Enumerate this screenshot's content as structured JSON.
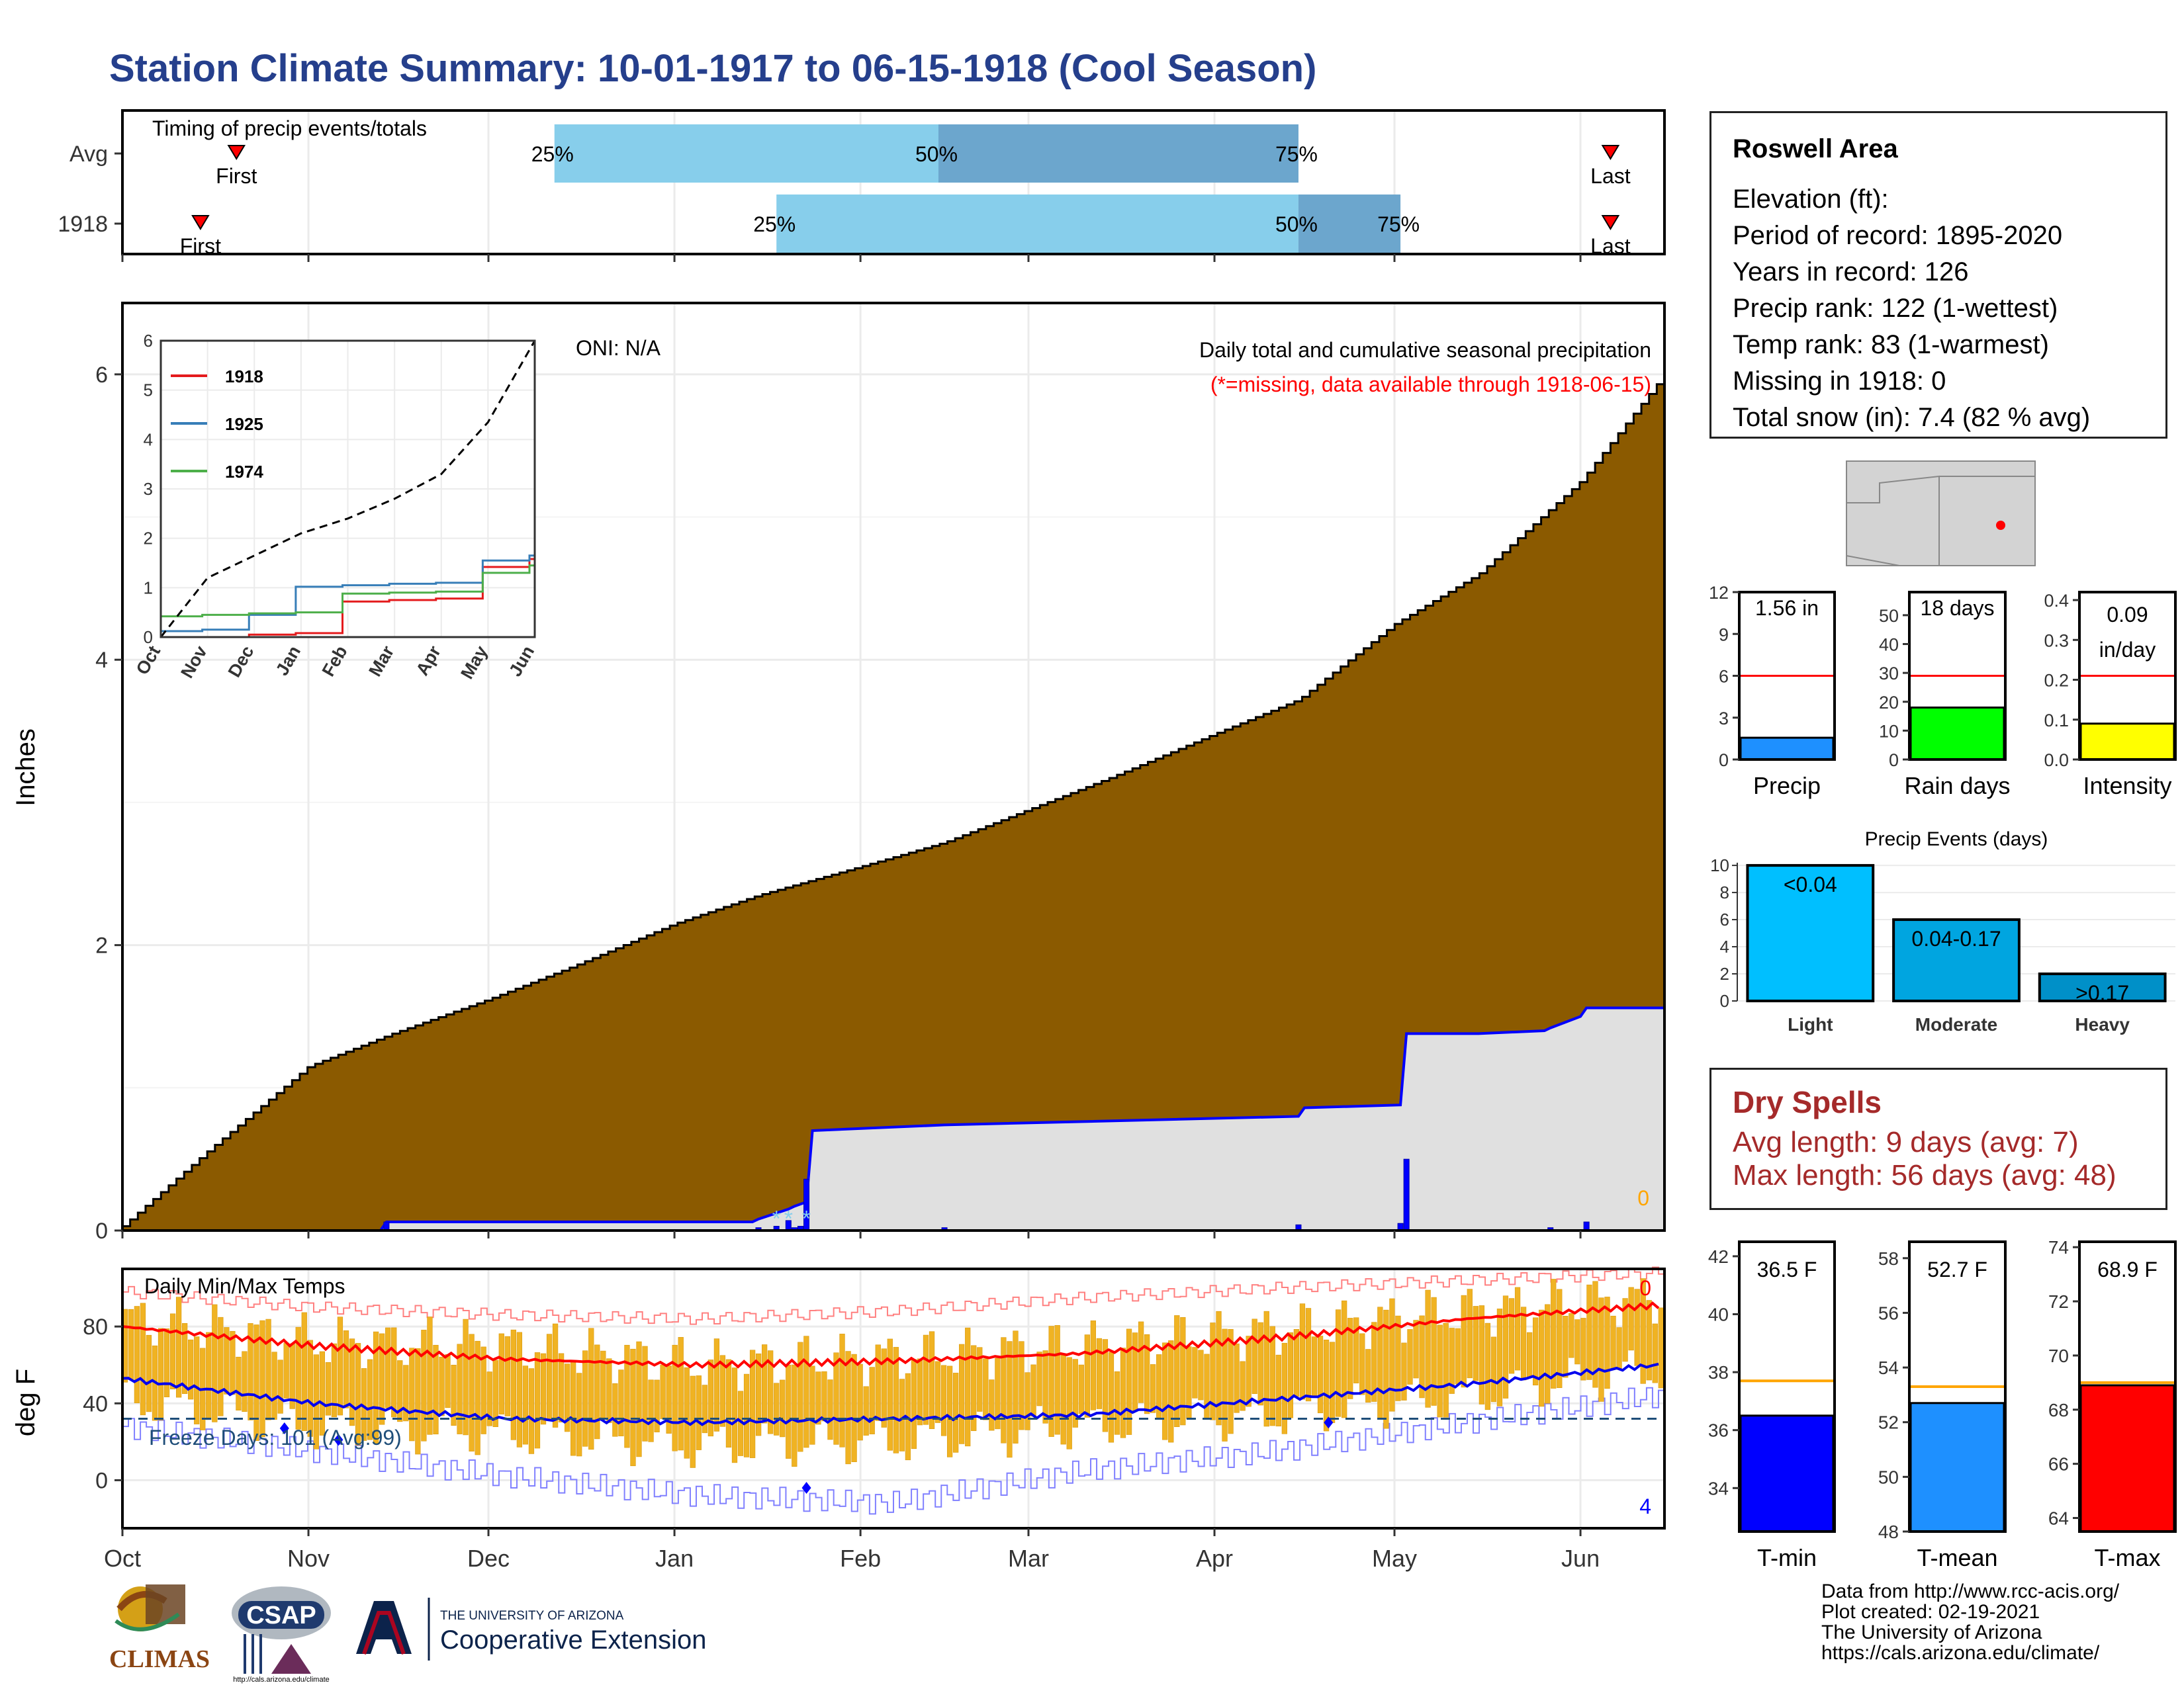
{
  "page_title": "Station Climate Summary: 10-01-1917 to 06-15-1918 (Cool Season)",
  "info": {
    "station": "Roswell Area",
    "lines": [
      "Elevation (ft):",
      "Period of record: 1895-2020",
      "Years in record: 126",
      "Precip rank: 122 (1-wettest)",
      "Temp rank: 83 (1-warmest)",
      "Missing in 1918: 0",
      "Total snow (in): 7.4 (82 % avg)"
    ]
  },
  "dry_spells": {
    "title": "Dry Spells",
    "avg_length": "Avg length: 9 days (avg: 7)",
    "max_length": "Max length: 56 days (avg: 48)"
  },
  "credits": [
    "Data from http://www.rcc-acis.org/",
    "Plot created: 02-19-2021",
    "The University of Arizona",
    "https://cals.arizona.edu/climate/"
  ],
  "logos": {
    "climas": "CLIMAS",
    "csap": "CSAP",
    "csap_url": "http://cals.arizona.edu/climate",
    "ua_line1": "THE UNIVERSITY OF ARIZONA",
    "ua_line2": "Cooperative Extension"
  },
  "colors": {
    "title": "#253f8c",
    "cumulative_fill": "#8b5a00",
    "avg_fill": "#e0e0e0",
    "daily_bars": "#0000ff",
    "temp_bars": "#f0b323",
    "avg_max": "#ff0000",
    "avg_min": "#0000ee",
    "dry_text": "#a52a2a"
  },
  "chart_data": [
    {
      "type": "bar",
      "id": "timing",
      "title": "Timing of precip events/totals",
      "rows": [
        {
          "label": "Avg",
          "first": "Oct 20",
          "q25": "Dec 12",
          "q50": "Feb 14",
          "q75": "Apr 15",
          "last": "Jun 6"
        },
        {
          "label": "1918",
          "first": "Oct 14",
          "q25": "Jan 18",
          "q50": "Apr 15",
          "q75": "May 2",
          "last": "Jun 6"
        }
      ],
      "marker_labels": {
        "first": "First",
        "last": "Last",
        "q25": "25%",
        "q50": "50%",
        "q75": "75%"
      },
      "x_months": [
        "Oct",
        "Nov",
        "Dec",
        "Jan",
        "Feb",
        "Mar",
        "Apr",
        "May",
        "Jun"
      ]
    },
    {
      "type": "area",
      "id": "cumulative",
      "title": "Daily total and cumulative seasonal precipitation",
      "subtitle": "(*=missing, data available through 1918-06-15)",
      "oni": "ONI: N/A",
      "ylabel": "Inches",
      "ylim": [
        0,
        6.5
      ],
      "yticks": [
        0,
        2,
        4,
        6
      ],
      "x_months": [
        "Oct",
        "Nov",
        "Dec",
        "Jan",
        "Feb",
        "Mar",
        "Apr",
        "May",
        "Jun"
      ],
      "missing_count": "0",
      "avg_cumulative": {
        "dates": [
          "1917-10-01",
          "1917-10-15",
          "1917-11-01",
          "1917-11-15",
          "1917-12-01",
          "1917-12-15",
          "1918-01-01",
          "1918-01-15",
          "1918-02-01",
          "1918-02-15",
          "1918-03-01",
          "1918-03-15",
          "1918-04-01",
          "1918-04-15",
          "1918-05-01",
          "1918-05-15",
          "1918-06-01",
          "1918-06-15"
        ],
        "values": [
          0.03,
          0.55,
          1.15,
          1.38,
          1.62,
          1.85,
          2.15,
          2.35,
          2.55,
          2.72,
          2.95,
          3.18,
          3.48,
          3.72,
          4.25,
          4.6,
          5.25,
          6.0
        ]
      },
      "obs_cumulative": {
        "dates": [
          "1917-10-01",
          "1917-11-13",
          "1917-11-14",
          "1918-01-14",
          "1918-01-15",
          "1918-01-20",
          "1918-01-21",
          "1918-01-23",
          "1918-01-24",
          "1918-02-15",
          "1918-04-15",
          "1918-04-16",
          "1918-05-02",
          "1918-05-03",
          "1918-05-15",
          "1918-05-26",
          "1918-05-27",
          "1918-06-01",
          "1918-06-02",
          "1918-06-15"
        ],
        "values": [
          0.0,
          0.0,
          0.06,
          0.06,
          0.08,
          0.15,
          0.17,
          0.2,
          0.7,
          0.74,
          0.8,
          0.86,
          0.88,
          1.38,
          1.38,
          1.4,
          1.42,
          1.5,
          1.56,
          1.56
        ]
      },
      "daily_bars": [
        {
          "date": "1917-11-14",
          "value": 0.06
        },
        {
          "date": "1918-01-15",
          "value": 0.02
        },
        {
          "date": "1918-01-18",
          "value": 0.03
        },
        {
          "date": "1918-01-20",
          "value": 0.07
        },
        {
          "date": "1918-01-21",
          "value": 0.02
        },
        {
          "date": "1918-01-22",
          "value": 0.03
        },
        {
          "date": "1918-01-23",
          "value": 0.36
        },
        {
          "date": "1918-02-15",
          "value": 0.02
        },
        {
          "date": "1918-04-15",
          "value": 0.04
        },
        {
          "date": "1918-05-02",
          "value": 0.05
        },
        {
          "date": "1918-05-03",
          "value": 0.5
        },
        {
          "date": "1918-05-27",
          "value": 0.02
        },
        {
          "date": "1918-06-02",
          "value": 0.06
        }
      ],
      "snow_markers": [
        "1918-01-18",
        "1918-01-20",
        "1918-01-23"
      ]
    },
    {
      "type": "line",
      "id": "inset",
      "ylim": [
        0,
        6
      ],
      "yticks": [
        0,
        1,
        2,
        3,
        4,
        5,
        6
      ],
      "x_months": [
        "Oct",
        "Nov",
        "Dec",
        "Jan",
        "Feb",
        "Mar",
        "Apr",
        "May",
        "Jun"
      ],
      "series": [
        {
          "name": "1918",
          "color": "#e41a1c",
          "values": [
            0.0,
            0.0,
            0.05,
            0.08,
            0.72,
            0.75,
            0.78,
            1.42,
            1.58
          ]
        },
        {
          "name": "1925",
          "color": "#377eb8",
          "values": [
            0.12,
            0.15,
            0.45,
            1.02,
            1.05,
            1.08,
            1.1,
            1.55,
            1.65
          ]
        },
        {
          "name": "1974",
          "color": "#4daf4a",
          "values": [
            0.42,
            0.45,
            0.48,
            0.5,
            0.88,
            0.9,
            0.92,
            1.3,
            1.45
          ]
        }
      ],
      "avg": [
        0.0,
        1.2,
        1.65,
        2.1,
        2.4,
        2.8,
        3.3,
        4.35,
        6.0
      ]
    },
    {
      "type": "bar",
      "id": "temps",
      "title": "Daily Min/Max Temps",
      "ylabel": "deg F",
      "ylim": [
        -25,
        110
      ],
      "yticks": [
        0,
        40,
        80
      ],
      "freeze_label": "Freeze Days: 101 (Avg:99)",
      "freeze_line": 32,
      "count_high": "0",
      "count_low": "4",
      "x_months": [
        "Oct",
        "Nov",
        "Dec",
        "Jan",
        "Feb",
        "Mar",
        "Apr",
        "May",
        "Jun"
      ],
      "avg_max_monthly": [
        80,
        70,
        63,
        60,
        62,
        66,
        74,
        84,
        91
      ],
      "avg_min_monthly": [
        53,
        40,
        32,
        30,
        32,
        34,
        42,
        50,
        60
      ],
      "record_high_monthly": [
        98,
        90,
        86,
        84,
        88,
        95,
        100,
        104,
        108
      ],
      "record_low_monthly": [
        28,
        15,
        2,
        -8,
        -12,
        5,
        15,
        30,
        44
      ],
      "obs_max_monthly": [
        84,
        72,
        70,
        60,
        64,
        70,
        78,
        88,
        95
      ],
      "obs_min_monthly": [
        42,
        28,
        24,
        18,
        20,
        28,
        34,
        44,
        58
      ],
      "record_days": [
        {
          "date": "1917-10-28",
          "value": 27
        },
        {
          "date": "1917-11-06",
          "value": 21
        },
        {
          "date": "1918-01-23",
          "value": -4
        },
        {
          "date": "1918-04-20",
          "value": 30
        }
      ]
    },
    {
      "type": "bar",
      "id": "precip_total",
      "label": "Precip",
      "value_text": "1.56 in",
      "value": 1.56,
      "avg": 6.0,
      "ylim": [
        0,
        12
      ],
      "yticks": [
        0,
        3,
        6,
        9,
        12
      ],
      "color": "#1e90ff"
    },
    {
      "type": "bar",
      "id": "rain_days",
      "label": "Rain days",
      "value_text": "18 days",
      "value": 18,
      "avg": 29,
      "ylim": [
        0,
        58
      ],
      "yticks": [
        0,
        10,
        20,
        30,
        40,
        50
      ],
      "color": "#00ff00"
    },
    {
      "type": "bar",
      "id": "intensity",
      "label": "Intensity",
      "value_text": "0.09",
      "value_text2": "in/day",
      "value": 0.09,
      "avg": 0.21,
      "ylim": [
        0,
        0.42
      ],
      "yticks": [
        0.0,
        0.1,
        0.2,
        0.3,
        0.4
      ],
      "color": "#ffff00"
    },
    {
      "type": "bar",
      "id": "events",
      "title": "Precip Events (days)",
      "categories": [
        "Light",
        "Moderate",
        "Heavy"
      ],
      "values": [
        10,
        6,
        2
      ],
      "bar_labels": [
        "<0.04",
        "0.04-0.17",
        ">0.17"
      ],
      "colors": [
        "#00bfff",
        "#00a5e0",
        "#0090c8"
      ],
      "ylim": [
        0,
        10.2
      ],
      "yticks": [
        0,
        2,
        4,
        6,
        8,
        10
      ]
    },
    {
      "type": "bar",
      "id": "tmin",
      "label": "T-min",
      "value_text": "36.5 F",
      "value": 36.5,
      "avg": 37.7,
      "ylim": [
        32.5,
        42.5
      ],
      "yticks": [
        34,
        36,
        38,
        40,
        42
      ],
      "color": "#0000ff"
    },
    {
      "type": "bar",
      "id": "tmean",
      "label": "T-mean",
      "value_text": "52.7 F",
      "value": 52.7,
      "avg": 53.3,
      "ylim": [
        48,
        58.6
      ],
      "yticks": [
        48,
        50,
        52,
        54,
        56,
        58
      ],
      "color": "#1e90ff"
    },
    {
      "type": "bar",
      "id": "tmax",
      "label": "T-max",
      "value_text": "68.9 F",
      "value": 68.9,
      "avg": 69.0,
      "ylim": [
        63.5,
        74.2
      ],
      "yticks": [
        64,
        66,
        68,
        70,
        72,
        74
      ],
      "color": "#ff0000"
    }
  ]
}
